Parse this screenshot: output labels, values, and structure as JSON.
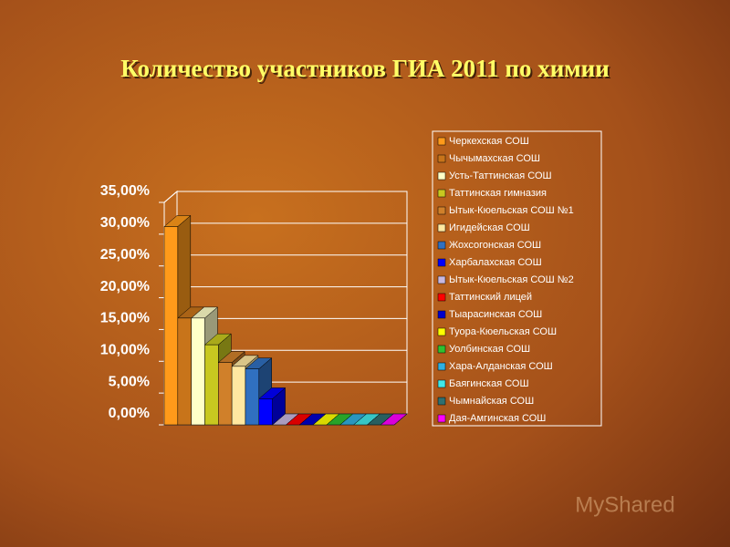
{
  "chart_data": {
    "type": "bar3d",
    "title": "Количество участников ГИА 2011 по химии",
    "watermark": "MyShared",
    "ylim": [
      0,
      35
    ],
    "yticks": [
      {
        "value": 0,
        "label": "0,00%"
      },
      {
        "value": 5,
        "label": "5,00%"
      },
      {
        "value": 10,
        "label": "10,00%"
      },
      {
        "value": 15,
        "label": "15,00%"
      },
      {
        "value": 20,
        "label": "20,00%"
      },
      {
        "value": 25,
        "label": "25,00%"
      },
      {
        "value": 30,
        "label": "30,00%"
      },
      {
        "value": 35,
        "label": "35,00%"
      }
    ],
    "grid": true,
    "legend": "right",
    "series": [
      {
        "name": "Черкехская СОШ",
        "color": "#ff9a1a",
        "values": [
          31.2
        ]
      },
      {
        "name": "Чычымахская СОШ",
        "color": "#c8741a",
        "values": [
          16.8
        ]
      },
      {
        "name": "Усть-Таттинская СОШ",
        "color": "#ffffc8",
        "values": [
          16.8
        ]
      },
      {
        "name": "Таттинская гимназия",
        "color": "#c8c820",
        "values": [
          12.6
        ]
      },
      {
        "name": "Ытык-Кюельская СОШ №1",
        "color": "#d0802a",
        "values": [
          9.8
        ]
      },
      {
        "name": "Игидейская СОШ",
        "color": "#ffe8a0",
        "values": [
          9.2
        ]
      },
      {
        "name": "Жохсогонская СОШ",
        "color": "#3070c0",
        "values": [
          8.8
        ]
      },
      {
        "name": "Харбалахская СОШ",
        "color": "#0000ff",
        "values": [
          4.1
        ]
      },
      {
        "name": "Ытык-Кюельская СОШ №2",
        "color": "#c8b8e0",
        "values": [
          0
        ]
      },
      {
        "name": "Таттинский лицей",
        "color": "#ff0000",
        "values": [
          0
        ]
      },
      {
        "name": "Тыарасинская СОШ",
        "color": "#0000cc",
        "values": [
          0
        ]
      },
      {
        "name": "Туора-Кюельская СОШ",
        "color": "#ffff00",
        "values": [
          0
        ]
      },
      {
        "name": "Уолбинская СОШ",
        "color": "#30c030",
        "values": [
          0
        ]
      },
      {
        "name": "Хара-Алданская СОШ",
        "color": "#30b0e0",
        "values": [
          0
        ]
      },
      {
        "name": "Баягинская СОШ",
        "color": "#40e8e8",
        "values": [
          0
        ]
      },
      {
        "name": "Чымнайская СОШ",
        "color": "#307070",
        "values": [
          0
        ]
      },
      {
        "name": "Дая-Амгинская СОШ",
        "color": "#ff00ff",
        "values": [
          0
        ]
      }
    ]
  }
}
